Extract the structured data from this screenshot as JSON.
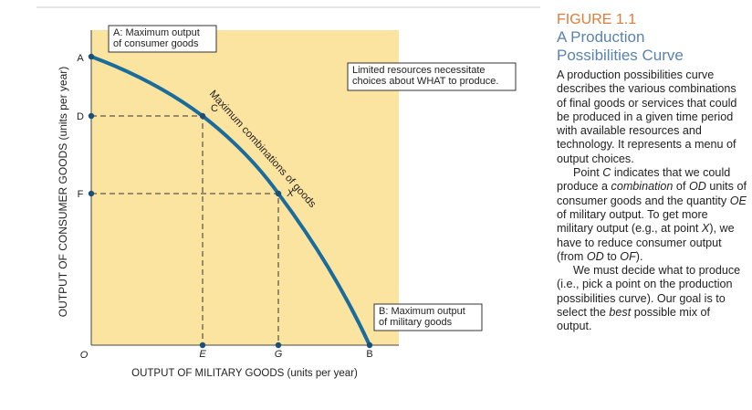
{
  "diagram": {
    "axis_labels": {
      "y": "OUTPUT OF CONSUMER GOODS (units per year)",
      "x": "OUTPUT OF MILITARY GOODS (units per year)"
    },
    "points": [
      "A",
      "D",
      "F",
      "O",
      "E",
      "G",
      "B",
      "C",
      "X"
    ],
    "curve_label": "Maximum combinations of goods",
    "callouts": [
      [
        "A: Maximum output",
        "of consumer goods"
      ],
      [
        "Limited resources necessitate",
        "choices about WHAT to produce."
      ],
      [
        "B: Maximum output",
        "of military goods"
      ]
    ]
  },
  "caption": {
    "figure": "FIGURE 1.1",
    "title": [
      "A Production",
      "Possibilities Curve"
    ],
    "paragraphs": [
      [
        "A production possibilities curve describes the various combinations of final goods or services that could be produced in a given time period with available resources and technology. It represents a menu of output choices."
      ],
      [
        "Point ",
        {
          "text": "C",
          "style": "italic"
        },
        " indicates that we could produce a ",
        {
          "text": "combination",
          "style": "italic"
        },
        " of ",
        {
          "text": "OD",
          "style": "italic"
        },
        " units of consumer goods and the quantity ",
        {
          "text": "OE",
          "style": "italic"
        },
        " of military output. To get more military output (e.g., at point ",
        {
          "text": "X",
          "style": "italic"
        },
        "), we have to reduce consumer output (from ",
        {
          "text": "OD",
          "style": "italic"
        },
        " to ",
        {
          "text": "OF",
          "style": "italic"
        },
        ")."
      ],
      [
        "We must decide what to produce (i.e., pick a point on the production possibilities curve). Our goal is to select the ",
        {
          "text": "best",
          "style": "italic"
        },
        " possible mix of output."
      ]
    ]
  }
}
